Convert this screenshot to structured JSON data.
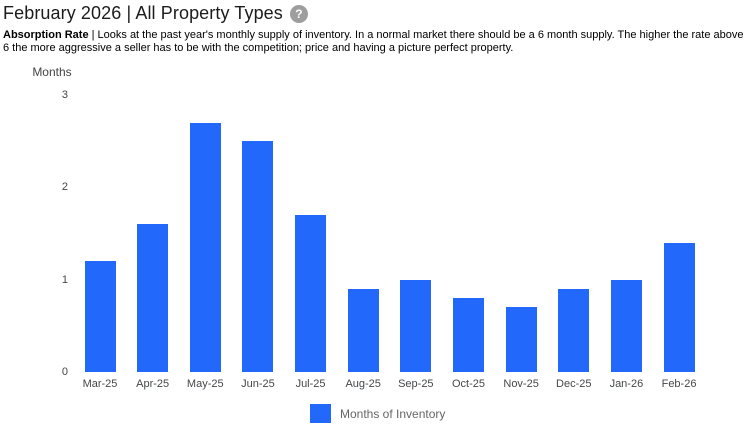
{
  "header": {
    "title": "February 2026 | All Property Types",
    "help_icon_glyph": "?"
  },
  "description": {
    "bold_label": "Absorption Rate",
    "rest": " | Looks at the past year's monthly supply of inventory. In a normal market there should be a 6 month supply. The higher the rate above 6 the more aggressive a seller has to be with the competition; price and having a picture perfect property."
  },
  "chart_data": {
    "type": "bar",
    "title": "",
    "xlabel": "",
    "ylabel": "Months",
    "categories": [
      "Mar-25",
      "Apr-25",
      "May-25",
      "Jun-25",
      "Jul-25",
      "Aug-25",
      "Sep-25",
      "Oct-25",
      "Nov-25",
      "Dec-25",
      "Jan-26",
      "Feb-26"
    ],
    "values": [
      1.2,
      1.6,
      2.7,
      2.5,
      1.7,
      0.9,
      1.0,
      0.8,
      0.7,
      0.9,
      1.0,
      1.4
    ],
    "ylim": [
      0,
      3
    ],
    "yticks": [
      0,
      1,
      2,
      3
    ],
    "grid": false,
    "legend": {
      "label": "Months of Inventory",
      "position": "bottom"
    },
    "bar_color": "#2268FB"
  },
  "colors": {
    "bar": "#2268FB",
    "title_text": "#1c1c1c",
    "axis_text": "#444444",
    "legend_text": "#666666",
    "help_icon_bg": "#9e9e9e"
  }
}
